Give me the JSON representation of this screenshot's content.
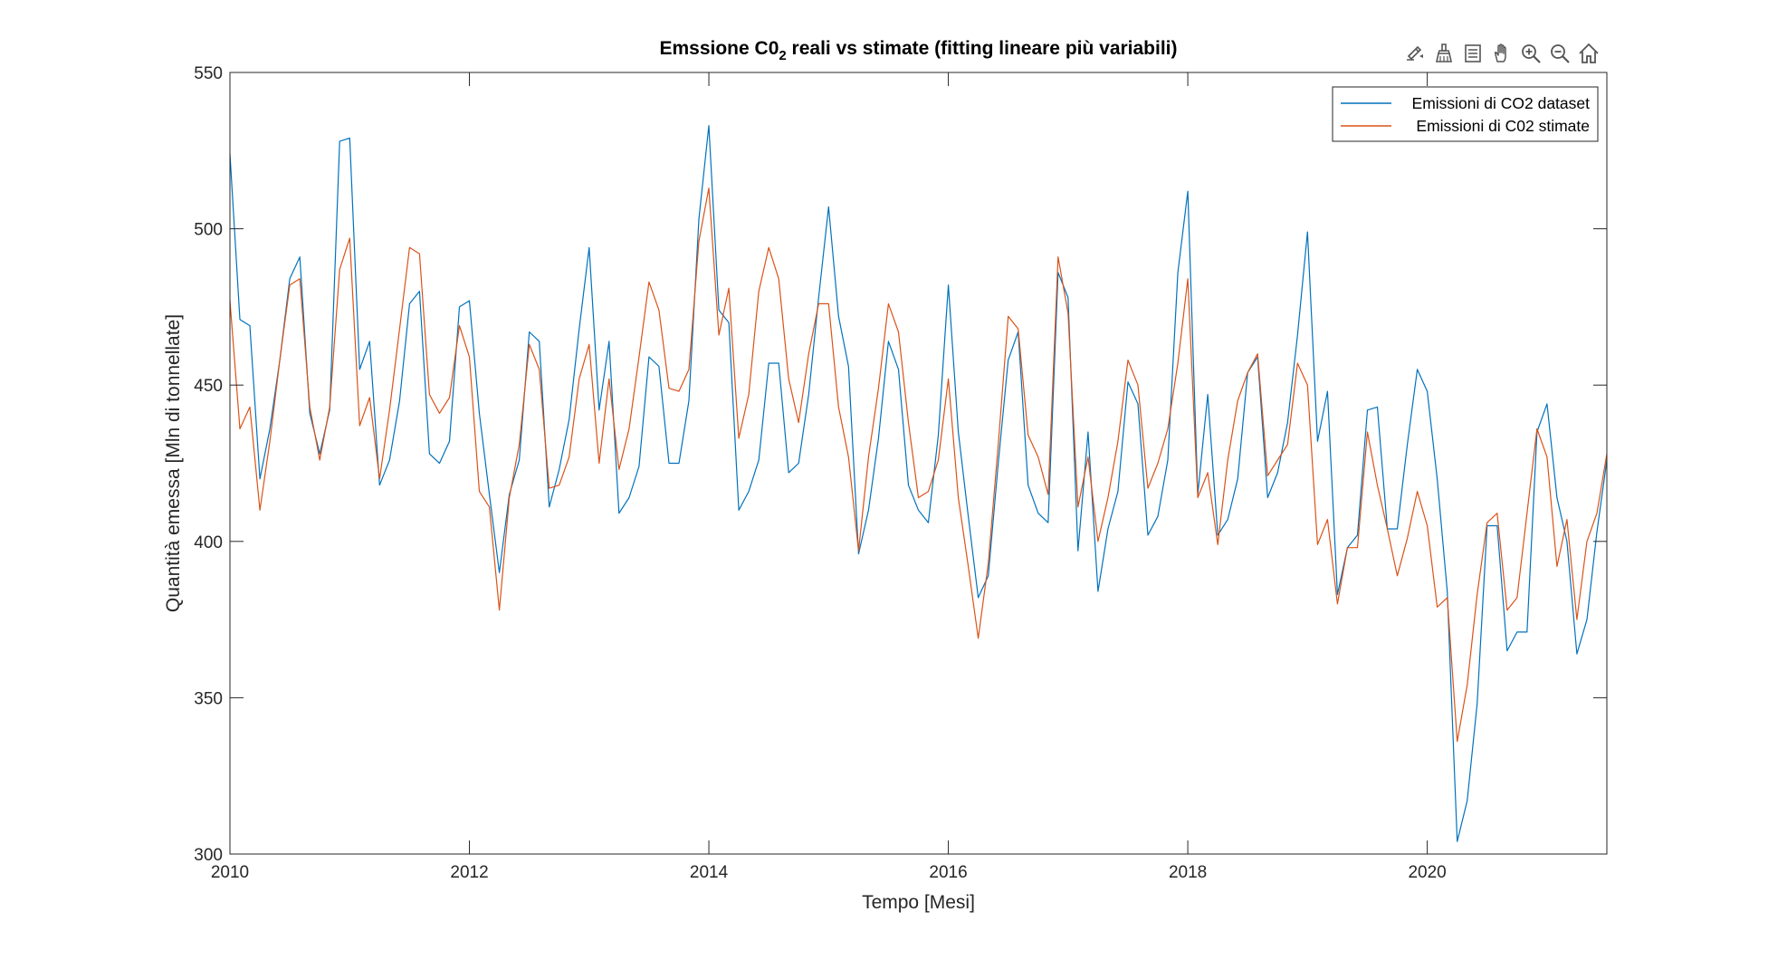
{
  "toolbar": {
    "buttons": [
      {
        "icon": "data-tips-icon"
      },
      {
        "icon": "brush-icon"
      },
      {
        "icon": "legend-toggle-icon"
      },
      {
        "icon": "pan-hand-icon"
      },
      {
        "icon": "zoom-in-icon"
      },
      {
        "icon": "zoom-out-icon"
      },
      {
        "icon": "home-icon"
      }
    ]
  },
  "chart_data": {
    "type": "line",
    "title": {
      "main": "Emssione C0",
      "sub": "2",
      "rest": " reali vs stimate (fitting lineare più variabili)"
    },
    "xlabel": "Tempo [Mesi]",
    "ylabel": "Quantità emessa [Mln di tonnellate]",
    "xlim": [
      2010,
      2021.5
    ],
    "ylim": [
      300,
      550
    ],
    "xticks": [
      2010,
      2012,
      2014,
      2016,
      2018,
      2020
    ],
    "yticks": [
      300,
      350,
      400,
      450,
      500,
      550
    ],
    "grid": false,
    "legend_position": "top-right",
    "x_start": 2010,
    "x_step_months": 1,
    "series": [
      {
        "name": "Emissioni di CO2 dataset",
        "color": "#0072BD",
        "values": [
          524,
          471,
          469,
          420,
          436,
          458,
          484,
          491,
          441,
          428,
          442,
          528,
          529,
          455,
          464,
          418,
          426,
          445,
          476,
          480,
          428,
          425,
          432,
          475,
          477,
          441,
          415,
          390,
          415,
          426,
          467,
          464,
          411,
          423,
          439,
          468,
          494,
          442,
          464,
          409,
          414,
          424,
          459,
          456,
          425,
          425,
          445,
          503,
          533,
          474,
          470,
          410,
          416,
          426,
          457,
          457,
          422,
          425,
          447,
          478,
          507,
          472,
          456,
          396,
          410,
          433,
          464,
          455,
          418,
          410,
          406,
          434,
          482,
          435,
          408,
          382,
          389,
          425,
          458,
          467,
          418,
          409,
          406,
          486,
          478,
          397,
          435,
          384,
          404,
          416,
          451,
          444,
          402,
          408,
          426,
          486,
          512,
          415,
          447,
          402,
          407,
          420,
          454,
          459,
          414,
          422,
          438,
          466,
          499,
          432,
          448,
          383,
          398,
          402,
          442,
          443,
          404,
          404,
          431,
          455,
          448,
          420,
          384,
          304,
          317,
          348,
          405,
          405,
          365,
          371,
          371,
          435,
          444,
          414,
          400,
          364,
          375,
          403,
          426
        ]
      },
      {
        "name": "Emissioni di C02 stimate",
        "color": "#D95319",
        "values": [
          477,
          436,
          443,
          410,
          432,
          458,
          482,
          484,
          443,
          426,
          443,
          487,
          497,
          437,
          446,
          420,
          442,
          468,
          494,
          492,
          447,
          441,
          446,
          469,
          459,
          416,
          411,
          378,
          414,
          431,
          463,
          455,
          417,
          418,
          427,
          452,
          463,
          425,
          452,
          423,
          436,
          459,
          483,
          474,
          449,
          448,
          455,
          496,
          513,
          466,
          481,
          433,
          447,
          480,
          494,
          484,
          452,
          438,
          460,
          476,
          476,
          443,
          427,
          397,
          427,
          449,
          476,
          467,
          438,
          414,
          416,
          426,
          452,
          414,
          392,
          369,
          393,
          431,
          472,
          468,
          434,
          427,
          415,
          491,
          473,
          411,
          427,
          400,
          414,
          432,
          458,
          450,
          417,
          425,
          436,
          457,
          484,
          414,
          422,
          399,
          426,
          445,
          454,
          460,
          421,
          426,
          431,
          457,
          450,
          399,
          407,
          380,
          398,
          398,
          435,
          418,
          404,
          389,
          401,
          416,
          405,
          379,
          382,
          336,
          354,
          383,
          406,
          409,
          378,
          382,
          409,
          436,
          427,
          392,
          407,
          375,
          400,
          409,
          428
        ]
      }
    ]
  }
}
